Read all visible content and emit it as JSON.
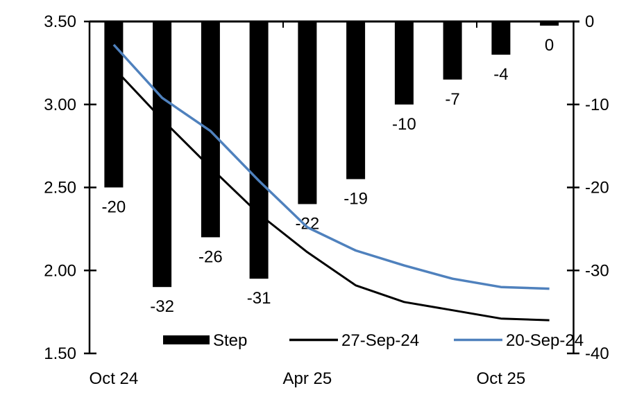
{
  "chart_data": {
    "type": "bar",
    "subtype": "bar-line combo, bars hang from zero at top on right axis",
    "title": "",
    "n_categories": 10,
    "bar_series": {
      "name": "Step",
      "axis": "right",
      "color": "#000000",
      "values": [
        -20,
        -32,
        -26,
        -31,
        -22,
        -19,
        -10,
        -7,
        -4,
        -0.5
      ],
      "data_labels": [
        "-20",
        "-32",
        "-26",
        "-31",
        "-22",
        "-19",
        "-10",
        "-7",
        "-4",
        "0"
      ]
    },
    "line_series": [
      {
        "name": "27-Sep-24",
        "axis": "left",
        "color": "#000000",
        "values": [
          3.22,
          2.91,
          2.62,
          2.34,
          2.11,
          1.91,
          1.81,
          1.76,
          1.71,
          1.7
        ]
      },
      {
        "name": "20-Sep-24",
        "axis": "left",
        "color": "#4f81bd",
        "values": [
          3.36,
          3.04,
          2.84,
          2.54,
          2.26,
          2.12,
          2.03,
          1.95,
          1.9,
          1.89
        ]
      }
    ],
    "left_axis": {
      "min": 1.5,
      "max": 3.5,
      "tick_labels": [
        "3.50",
        "3.00",
        "2.50",
        "2.00",
        "1.50"
      ]
    },
    "right_axis": {
      "min": -40,
      "max": 0,
      "tick_labels": [
        "0",
        "-10",
        "-20",
        "-30",
        "-40"
      ]
    },
    "x_axis": {
      "tick_labels": [
        {
          "label": "Oct 24",
          "category_index": 0
        },
        {
          "label": "Apr 25",
          "category_index": 4
        },
        {
          "label": "Oct 25",
          "category_index": 8
        }
      ]
    },
    "legend": {
      "position": "bottom",
      "entries": [
        {
          "label": "Step",
          "swatch": "bar",
          "color": "#000000"
        },
        {
          "label": "27-Sep-24",
          "swatch": "line",
          "color": "#000000"
        },
        {
          "label": "20-Sep-24",
          "swatch": "line",
          "color": "#4f81bd"
        }
      ]
    },
    "colors": {
      "background": "#ffffff",
      "axis": "#000000",
      "accent_blue": "#4f81bd"
    },
    "grid": "off"
  }
}
